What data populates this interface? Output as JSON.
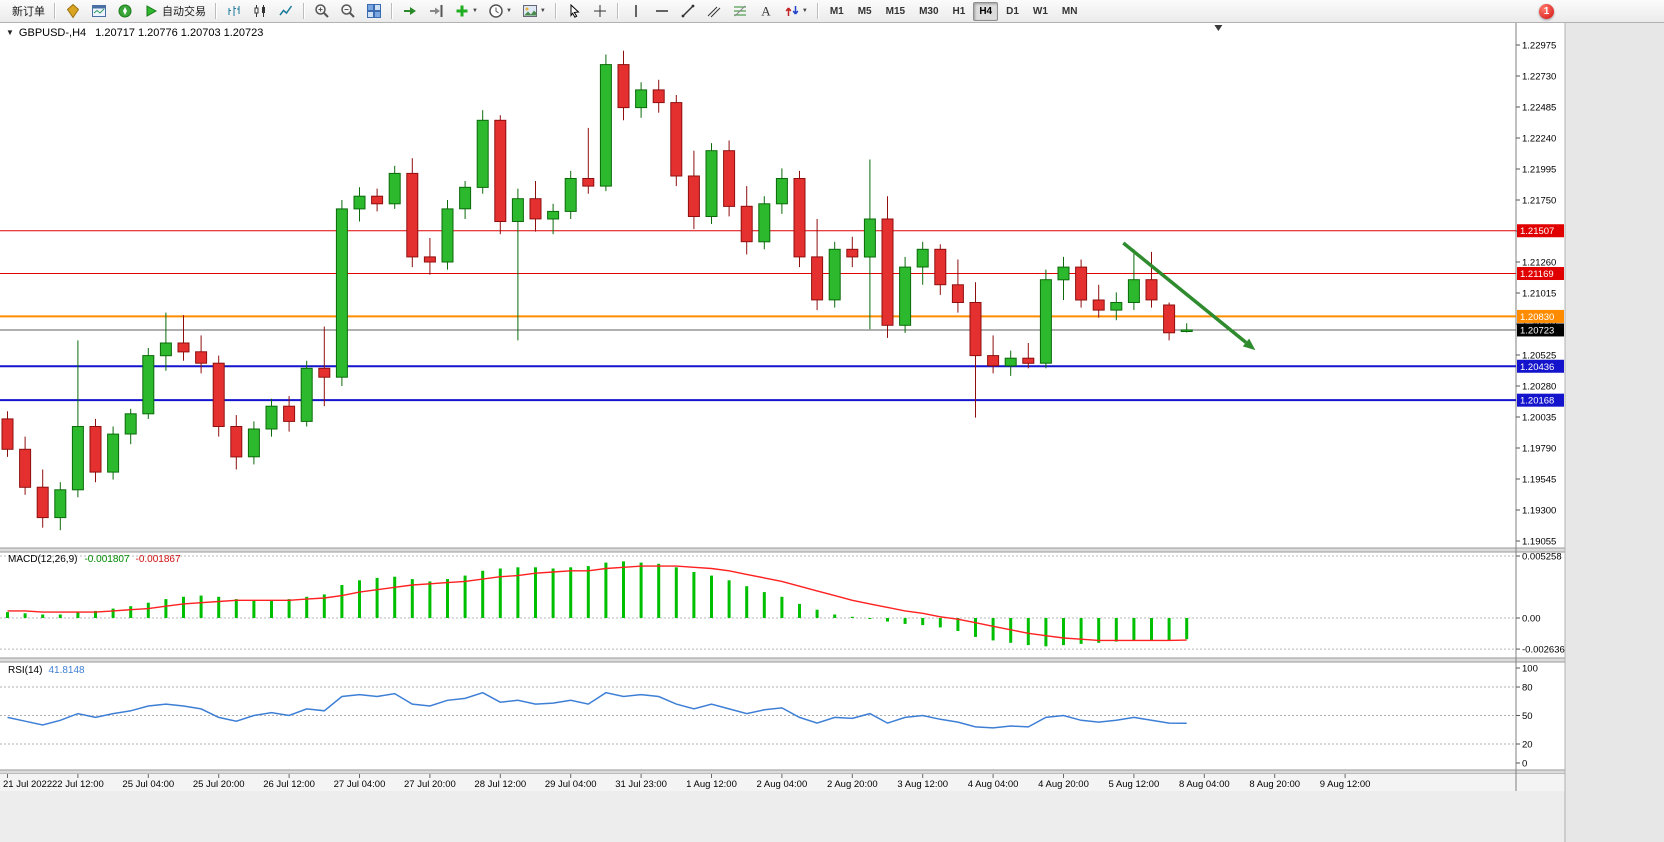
{
  "toolbar": {
    "items": [
      {
        "kind": "button",
        "name": "new-order-button",
        "label": "新订单"
      },
      {
        "kind": "sep"
      },
      {
        "kind": "icon",
        "name": "market-watch-icon"
      },
      {
        "kind": "icon",
        "name": "data-window-icon"
      },
      {
        "kind": "icon",
        "name": "navigator-icon"
      },
      {
        "kind": "button",
        "name": "autotrading-button",
        "icon": "play-icon",
        "label": "自动交易"
      },
      {
        "kind": "sep"
      },
      {
        "kind": "icon",
        "name": "bar-chart-icon"
      },
      {
        "kind": "icon",
        "name": "candlestick-chart-icon"
      },
      {
        "kind": "icon",
        "name": "line-chart-icon"
      },
      {
        "kind": "sep"
      },
      {
        "kind": "icon",
        "name": "zoom-in-icon"
      },
      {
        "kind": "icon",
        "name": "zoom-out-icon"
      },
      {
        "kind": "icon",
        "name": "tile-windows-icon"
      },
      {
        "kind": "sep"
      },
      {
        "kind": "icon",
        "name": "auto-scroll-icon"
      },
      {
        "kind": "icon",
        "name": "chart-shift-icon"
      },
      {
        "kind": "icon",
        "name": "indicators-icon",
        "dropdown": true
      },
      {
        "kind": "icon",
        "name": "periods-icon",
        "dropdown": true
      },
      {
        "kind": "icon",
        "name": "templates-icon",
        "dropdown": true
      },
      {
        "kind": "sep"
      },
      {
        "kind": "icon",
        "name": "cursor-icon"
      },
      {
        "kind": "icon",
        "name": "crosshair-icon"
      },
      {
        "kind": "sep"
      },
      {
        "kind": "icon",
        "name": "vertical-line-icon"
      },
      {
        "kind": "icon",
        "name": "horizontal-line-icon"
      },
      {
        "kind": "icon",
        "name": "trendline-icon"
      },
      {
        "kind": "icon",
        "name": "channel-icon"
      },
      {
        "kind": "icon",
        "name": "fibonacci-icon"
      },
      {
        "kind": "icon",
        "name": "text-icon"
      },
      {
        "kind": "icon",
        "name": "arrows-icon",
        "dropdown": true
      },
      {
        "kind": "sep"
      }
    ],
    "timeframes": [
      "M1",
      "M5",
      "M15",
      "M30",
      "H1",
      "H4",
      "D1",
      "W1",
      "MN"
    ],
    "active_timeframe": "H4",
    "notification_badge": "1"
  },
  "window": {
    "symbol_title": "GBPUSD-,H4",
    "ohlc_text": "1.20717 1.20776 1.20703 1.20723"
  },
  "chart_data": {
    "type": "candlestick",
    "symbol": "GBPUSD-",
    "timeframe": "H4",
    "price_axis": {
      "ticks": [
        "1.22975",
        "1.22730",
        "1.22485",
        "1.22240",
        "1.21995",
        "1.21750",
        "1.21505",
        "1.21260",
        "1.21015",
        "1.20770",
        "1.20525",
        "1.20280",
        "1.20035",
        "1.19790",
        "1.19545",
        "1.19300",
        "1.19055"
      ]
    },
    "hlines": [
      {
        "price": 1.21507,
        "label": "1.21507",
        "color": "#e00000",
        "width": 1
      },
      {
        "price": 1.21169,
        "label": "1.21169",
        "color": "#e00000",
        "width": 1
      },
      {
        "price": 1.2083,
        "label": "1.20830",
        "color": "#ff8c00",
        "width": 2
      },
      {
        "price": 1.20436,
        "label": "1.20436",
        "color": "#1414cc",
        "width": 2
      },
      {
        "price": 1.20168,
        "label": "1.20168",
        "color": "#1414cc",
        "width": 2
      }
    ],
    "current_price": {
      "value": 1.20723,
      "label": "1.20723",
      "line_color": "#606060",
      "box_color": "#000000"
    },
    "candles": [
      [
        1.2002,
        1.2008,
        1.1972,
        1.1978
      ],
      [
        1.1978,
        1.1988,
        1.1942,
        1.1948
      ],
      [
        1.1948,
        1.1962,
        1.1916,
        1.1924
      ],
      [
        1.1924,
        1.1952,
        1.1914,
        1.1946
      ],
      [
        1.1946,
        1.2064,
        1.194,
        1.1996
      ],
      [
        1.1996,
        1.2002,
        1.1952,
        1.196
      ],
      [
        1.196,
        1.1996,
        1.1954,
        1.199
      ],
      [
        1.199,
        1.201,
        1.1982,
        1.2006
      ],
      [
        1.2006,
        1.2058,
        1.2002,
        1.2052
      ],
      [
        1.2052,
        1.2086,
        1.204,
        1.2062
      ],
      [
        1.2062,
        1.2084,
        1.2048,
        1.2055
      ],
      [
        1.2055,
        1.2068,
        1.2038,
        1.2046
      ],
      [
        1.2046,
        1.2052,
        1.1988,
        1.1996
      ],
      [
        1.1996,
        1.2005,
        1.1962,
        1.1972
      ],
      [
        1.1972,
        1.2,
        1.1966,
        1.1994
      ],
      [
        1.1994,
        1.2018,
        1.1988,
        1.2012
      ],
      [
        1.2012,
        1.202,
        1.1992,
        1.2
      ],
      [
        1.2,
        1.2048,
        1.1996,
        1.2042
      ],
      [
        1.2042,
        1.2075,
        1.2012,
        1.2035
      ],
      [
        1.2035,
        1.2175,
        1.2028,
        1.2168
      ],
      [
        1.2168,
        1.2185,
        1.2158,
        1.2178
      ],
      [
        1.2178,
        1.2184,
        1.2166,
        1.2172
      ],
      [
        1.2172,
        1.2202,
        1.2168,
        1.2196
      ],
      [
        1.2196,
        1.2208,
        1.2122,
        1.213
      ],
      [
        1.213,
        1.2145,
        1.2116,
        1.2126
      ],
      [
        1.2126,
        1.2175,
        1.212,
        1.2168
      ],
      [
        1.2168,
        1.219,
        1.216,
        1.2185
      ],
      [
        1.2185,
        1.2246,
        1.218,
        1.2238
      ],
      [
        1.2238,
        1.2242,
        1.2148,
        1.2158
      ],
      [
        1.2158,
        1.2184,
        1.2064,
        1.2176
      ],
      [
        1.2176,
        1.219,
        1.215,
        1.216
      ],
      [
        1.216,
        1.2172,
        1.2148,
        1.2166
      ],
      [
        1.2166,
        1.2198,
        1.216,
        1.2192
      ],
      [
        1.2192,
        1.2232,
        1.218,
        1.2186
      ],
      [
        1.2186,
        1.229,
        1.2182,
        1.2282
      ],
      [
        1.2282,
        1.2293,
        1.2238,
        1.2248
      ],
      [
        1.2248,
        1.2268,
        1.224,
        1.2262
      ],
      [
        1.2262,
        1.227,
        1.2244,
        1.2252
      ],
      [
        1.2252,
        1.2258,
        1.2186,
        1.2194
      ],
      [
        1.2194,
        1.2214,
        1.2152,
        1.2162
      ],
      [
        1.2162,
        1.222,
        1.2156,
        1.2214
      ],
      [
        1.2214,
        1.2222,
        1.2162,
        1.217
      ],
      [
        1.217,
        1.2186,
        1.2132,
        1.2142
      ],
      [
        1.2142,
        1.2178,
        1.2136,
        1.2172
      ],
      [
        1.2172,
        1.22,
        1.2164,
        1.2192
      ],
      [
        1.2192,
        1.2198,
        1.2122,
        1.213
      ],
      [
        1.213,
        1.216,
        1.2088,
        1.2096
      ],
      [
        1.2096,
        1.2142,
        1.209,
        1.2136
      ],
      [
        1.2136,
        1.2146,
        1.2122,
        1.213
      ],
      [
        1.213,
        1.2207,
        1.2073,
        1.216
      ],
      [
        1.216,
        1.2178,
        1.2066,
        1.2076
      ],
      [
        1.2076,
        1.213,
        1.207,
        1.2122
      ],
      [
        1.2122,
        1.2142,
        1.2108,
        1.2136
      ],
      [
        1.2136,
        1.214,
        1.21,
        1.2108
      ],
      [
        1.2108,
        1.2128,
        1.2086,
        1.2094
      ],
      [
        1.2094,
        1.211,
        1.2003,
        1.2052
      ],
      [
        1.2052,
        1.2068,
        1.2038,
        1.2044
      ],
      [
        1.2044,
        1.2056,
        1.2036,
        1.205
      ],
      [
        1.205,
        1.2062,
        1.2042,
        1.2046
      ],
      [
        1.2046,
        1.212,
        1.2042,
        1.2112
      ],
      [
        1.2112,
        1.213,
        1.2096,
        1.2122
      ],
      [
        1.2122,
        1.2128,
        1.209,
        1.2096
      ],
      [
        1.2096,
        1.2108,
        1.2082,
        1.2088
      ],
      [
        1.2088,
        1.2102,
        1.208,
        1.2094
      ],
      [
        1.2094,
        1.2136,
        1.2088,
        1.2112
      ],
      [
        1.2112,
        1.2134,
        1.209,
        1.2096
      ],
      [
        1.2092,
        1.2094,
        1.2064,
        1.207
      ],
      [
        1.20717,
        1.20776,
        1.20703,
        1.20723
      ]
    ],
    "up_color": "#2db92d",
    "down_color": "#e53030",
    "macd": {
      "label": "MACD(12,26,9)",
      "value_main": "-0.001807",
      "value_signal": "-0.001867",
      "hist_color": "#00be00",
      "signal_color": "#ff2020",
      "ticks": [
        "0.005258",
        "0.00",
        "-0.002636"
      ],
      "tick_values": [
        0.005258,
        0,
        -0.002636
      ],
      "histogram": [
        0.0005,
        0.0004,
        0.0003,
        0.0003,
        0.0005,
        0.0006,
        0.0008,
        0.001,
        0.0013,
        0.0016,
        0.0018,
        0.0019,
        0.0018,
        0.0016,
        0.0015,
        0.0015,
        0.0016,
        0.0018,
        0.002,
        0.0028,
        0.0032,
        0.0034,
        0.0035,
        0.0033,
        0.0031,
        0.0033,
        0.0036,
        0.004,
        0.0042,
        0.0043,
        0.0043,
        0.0042,
        0.0043,
        0.0044,
        0.0047,
        0.0048,
        0.0047,
        0.0046,
        0.0043,
        0.0039,
        0.0036,
        0.0032,
        0.0027,
        0.0022,
        0.0018,
        0.0012,
        0.0007,
        0.0003,
        0.0001,
        0.0,
        -0.0003,
        -0.0005,
        -0.0006,
        -0.0008,
        -0.0011,
        -0.0016,
        -0.0019,
        -0.0021,
        -0.0023,
        -0.0024,
        -0.0023,
        -0.0022,
        -0.0021,
        -0.002,
        -0.0019,
        -0.0019,
        -0.0019,
        -0.0018
      ],
      "signal": [
        0.0006,
        0.0006,
        0.0005,
        0.0005,
        0.0005,
        0.0005,
        0.0006,
        0.0007,
        0.0008,
        0.001,
        0.0012,
        0.0013,
        0.0014,
        0.0015,
        0.0015,
        0.0015,
        0.0015,
        0.0016,
        0.0017,
        0.0019,
        0.0022,
        0.0024,
        0.0026,
        0.0028,
        0.0029,
        0.003,
        0.0031,
        0.0033,
        0.0035,
        0.0036,
        0.0038,
        0.0039,
        0.004,
        0.004,
        0.0042,
        0.0043,
        0.0044,
        0.0044,
        0.0044,
        0.0043,
        0.0042,
        0.004,
        0.0037,
        0.0034,
        0.0031,
        0.0027,
        0.0023,
        0.0019,
        0.0015,
        0.0012,
        0.0009,
        0.0006,
        0.0004,
        0.0001,
        -0.0001,
        -0.0004,
        -0.0007,
        -0.001,
        -0.0013,
        -0.0015,
        -0.0017,
        -0.0018,
        -0.0019,
        -0.0019,
        -0.0019,
        -0.0019,
        -0.0019,
        -0.00187
      ]
    },
    "rsi": {
      "label": "RSI(14)",
      "value_text": "41.8148",
      "color": "#3e7fd6",
      "levels": [
        80,
        50,
        20
      ],
      "ticks": [
        100,
        80,
        50,
        20,
        0
      ],
      "values": [
        48,
        44,
        40,
        45,
        52,
        48,
        52,
        55,
        60,
        62,
        60,
        57,
        48,
        44,
        50,
        53,
        50,
        57,
        55,
        70,
        72,
        70,
        73,
        62,
        60,
        66,
        68,
        74,
        64,
        66,
        62,
        63,
        66,
        62,
        74,
        70,
        72,
        70,
        62,
        57,
        62,
        57,
        52,
        56,
        58,
        48,
        42,
        48,
        47,
        52,
        42,
        48,
        50,
        46,
        43,
        38,
        37,
        39,
        38,
        48,
        50,
        45,
        43,
        45,
        48,
        45,
        42,
        41.8
      ]
    },
    "x_labels": [
      "21 Jul 2022",
      "22 Jul 12:00",
      "25 Jul 04:00",
      "25 Jul 20:00",
      "26 Jul 12:00",
      "27 Jul 04:00",
      "27 Jul 20:00",
      "28 Jul 12:00",
      "29 Jul 04:00",
      "31 Jul 23:00",
      "1 Aug 12:00",
      "2 Aug 04:00",
      "2 Aug 20:00",
      "3 Aug 12:00",
      "4 Aug 04:00",
      "4 Aug 20:00",
      "5 Aug 12:00",
      "8 Aug 04:00",
      "8 Aug 20:00",
      "9 Aug 12:00"
    ],
    "x_label_step_candles": 4,
    "annotation_arrow": {
      "from_candle": 63.4,
      "from_price": 1.2141,
      "to_candle": 70.9,
      "to_price": 1.20564,
      "color": "#2e8b2e"
    },
    "shift_marker_candle": 68.8
  }
}
